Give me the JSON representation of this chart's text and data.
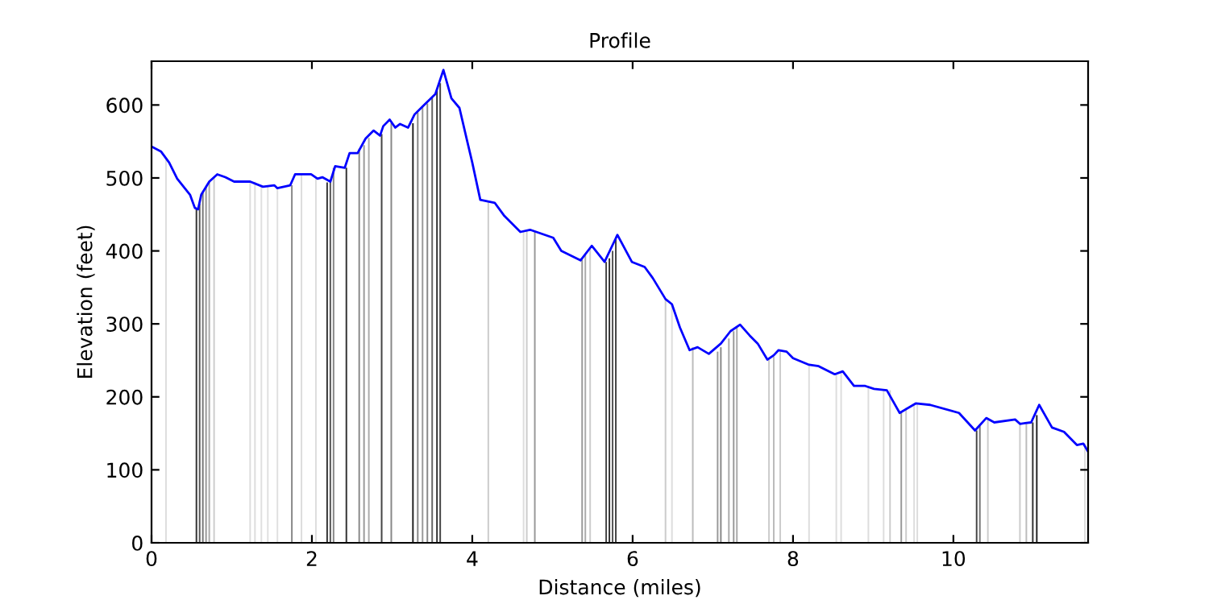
{
  "chart_data": {
    "type": "line",
    "title": "Profile",
    "xlabel": "Distance (miles)",
    "ylabel": "Elevation (feet)",
    "xlim": [
      0,
      11.68
    ],
    "ylim": [
      0,
      660
    ],
    "xticks": [
      0,
      2,
      4,
      6,
      8,
      10
    ],
    "yticks": [
      0,
      100,
      200,
      300,
      400,
      500,
      600
    ],
    "grid": false,
    "legend": false,
    "marker": "none",
    "line_style": "solid",
    "series": [
      {
        "type": "bar",
        "x": [
          0.18,
          0.56,
          0.6,
          0.64,
          0.68,
          0.72,
          0.78,
          1.23,
          1.29,
          1.37,
          1.45,
          1.57,
          1.75,
          1.87,
          2.05,
          2.19,
          2.23,
          2.27,
          2.43,
          2.59,
          2.65,
          2.71,
          2.87,
          2.99,
          3.26,
          3.32,
          3.38,
          3.44,
          3.5,
          3.56,
          3.6,
          4.2,
          4.64,
          4.68,
          4.78,
          5.37,
          5.41,
          5.47,
          5.67,
          5.71,
          5.75,
          5.79,
          6.41,
          6.49,
          6.75,
          7.06,
          7.1,
          7.2,
          7.26,
          7.3,
          7.7,
          7.76,
          7.84,
          8.2,
          8.54,
          8.6,
          8.94,
          9.13,
          9.21,
          9.35,
          9.41,
          9.51,
          9.55,
          10.29,
          10.33,
          10.43,
          10.83,
          10.91,
          10.99,
          11.04,
          11.64
        ],
        "values": [
          525,
          459,
          465,
          480,
          488,
          495,
          502,
          495,
          495,
          490,
          488,
          486,
          490,
          505,
          500,
          494,
          495,
          514,
          514,
          540,
          545,
          555,
          560,
          575,
          575,
          590,
          598,
          602,
          610,
          620,
          630,
          468,
          428,
          428,
          426,
          388,
          395,
          405,
          385,
          390,
          400,
          418,
          334,
          327,
          268,
          262,
          268,
          280,
          290,
          295,
          251,
          255,
          264,
          244,
          231,
          235,
          215,
          210,
          209,
          180,
          185,
          190,
          190,
          154,
          160,
          171,
          165,
          163,
          165,
          175,
          136
        ],
        "colors": [
          "#dddddd",
          "#333333",
          "#555555",
          "#777777",
          "#999999",
          "#aaaaaa",
          "#cccccc",
          "#dddddd",
          "#dddddd",
          "#e0e0e0",
          "#e0e0e0",
          "#e0e0e0",
          "#888888",
          "#dddddd",
          "#dddddd",
          "#333333",
          "#555555",
          "#888888",
          "#333333",
          "#888888",
          "#999999",
          "#aaaaaa",
          "#444444",
          "#888888",
          "#222222",
          "#888888",
          "#999999",
          "#888888",
          "#666666",
          "#333333",
          "#444444",
          "#cccccc",
          "#dddddd",
          "#cccccc",
          "#999999",
          "#999999",
          "#aaaaaa",
          "#cccccc",
          "#444444",
          "#333333",
          "#555555",
          "#444444",
          "#cccccc",
          "#dddddd",
          "#bbbbbb",
          "#999999",
          "#888888",
          "#aaaaaa",
          "#999999",
          "#aaaaaa",
          "#cccccc",
          "#bbbbbb",
          "#cccccc",
          "#dddddd",
          "#dddddd",
          "#dddddd",
          "#dddddd",
          "#dddddd",
          "#cccccc",
          "#999999",
          "#cccccc",
          "#dddddd",
          "#dddddd",
          "#444444",
          "#777777",
          "#cccccc",
          "#cccccc",
          "#bbbbbb",
          "#333333",
          "#222222",
          "#dddddd"
        ]
      },
      {
        "color": "#0000ff",
        "x": [
          0,
          0.12,
          0.22,
          0.32,
          0.48,
          0.54,
          0.58,
          0.62,
          0.72,
          0.82,
          0.92,
          1.03,
          1.23,
          1.39,
          1.53,
          1.57,
          1.73,
          1.79,
          1.99,
          2.07,
          2.13,
          2.23,
          2.29,
          2.41,
          2.47,
          2.57,
          2.67,
          2.77,
          2.85,
          2.89,
          2.97,
          3.04,
          3.1,
          3.2,
          3.28,
          3.38,
          3.54,
          3.64,
          3.74,
          3.84,
          3.94,
          4.0,
          4.1,
          4.28,
          4.4,
          4.6,
          4.72,
          4.8,
          5.01,
          5.11,
          5.35,
          5.49,
          5.65,
          5.81,
          5.99,
          6.15,
          6.25,
          6.41,
          6.49,
          6.59,
          6.71,
          6.81,
          6.95,
          7.1,
          7.22,
          7.34,
          7.46,
          7.56,
          7.68,
          7.76,
          7.82,
          7.92,
          8.0,
          8.2,
          8.32,
          8.52,
          8.62,
          8.76,
          8.9,
          9.01,
          9.17,
          9.33,
          9.53,
          9.71,
          10.07,
          10.27,
          10.41,
          10.51,
          10.77,
          10.83,
          10.97,
          11.07,
          11.23,
          11.38,
          11.54,
          11.62,
          11.68
        ],
        "values": [
          543,
          536,
          521,
          499,
          477,
          459,
          457,
          477,
          495,
          505,
          501,
          495,
          495,
          488,
          490,
          486,
          490,
          505,
          505,
          499,
          501,
          495,
          516,
          514,
          534,
          534,
          554,
          565,
          558,
          571,
          580,
          569,
          574,
          569,
          587,
          598,
          615,
          648,
          609,
          596,
          549,
          521,
          470,
          466,
          448,
          426,
          429,
          426,
          418,
          400,
          387,
          407,
          385,
          422,
          385,
          378,
          363,
          334,
          327,
          295,
          264,
          268,
          259,
          273,
          290,
          299,
          284,
          273,
          251,
          257,
          264,
          262,
          253,
          244,
          242,
          231,
          235,
          215,
          215,
          211,
          209,
          178,
          191,
          189,
          178,
          154,
          171,
          165,
          169,
          163,
          165,
          189,
          158,
          152,
          134,
          136,
          125
        ]
      }
    ]
  }
}
